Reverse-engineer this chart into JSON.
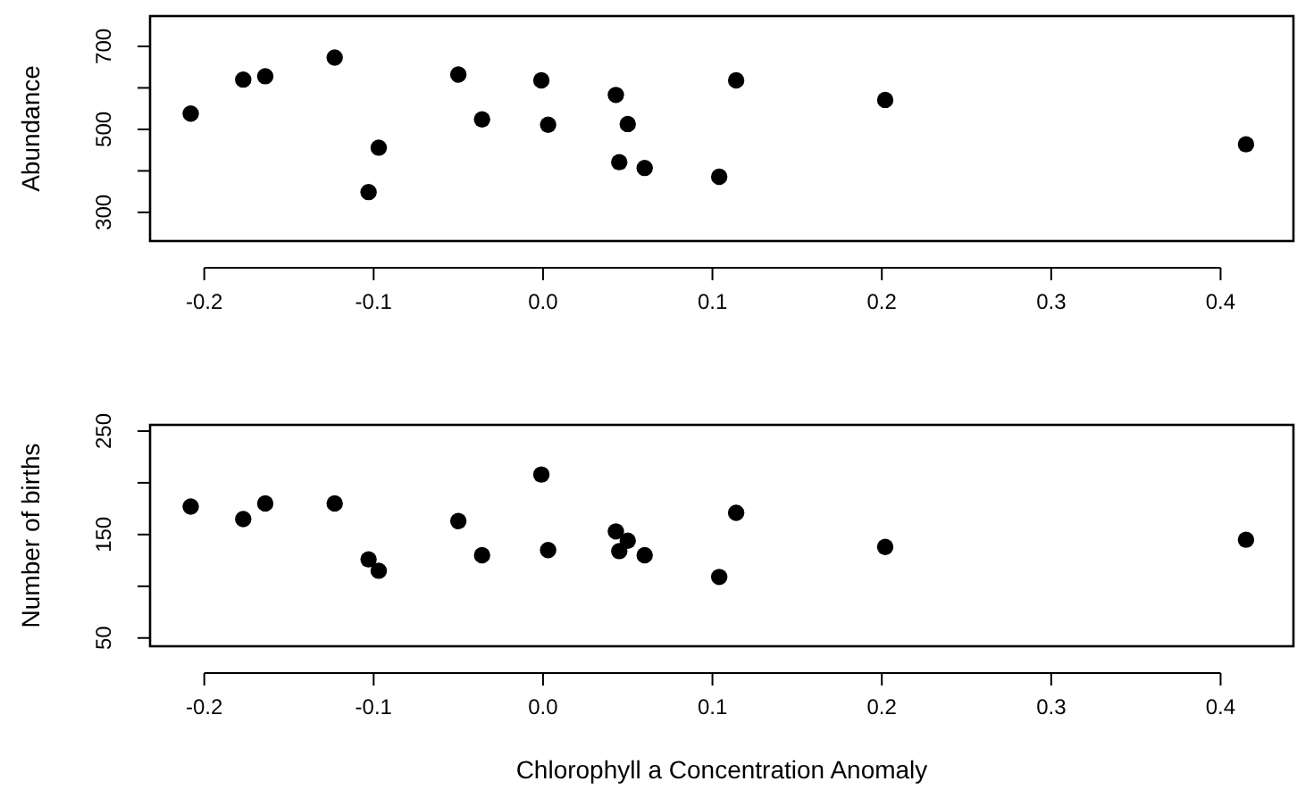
{
  "chart_data": [
    {
      "type": "scatter",
      "ylabel": "Abundance",
      "x": [
        -0.208,
        -0.177,
        -0.164,
        -0.123,
        -0.103,
        -0.097,
        -0.05,
        -0.036,
        -0.001,
        0.003,
        0.043,
        0.045,
        0.05,
        0.06,
        0.104,
        0.114,
        0.202,
        0.415
      ],
      "series": [
        {
          "color": "#000000",
          "values": [
            538,
            620,
            628,
            673,
            349,
            456,
            632,
            524,
            618,
            511,
            583,
            421,
            513,
            407,
            386,
            618,
            571,
            464
          ]
        }
      ],
      "xlim": [
        -0.232,
        0.443
      ],
      "ylim": [
        231,
        773
      ],
      "xticks": [
        -0.2,
        -0.1,
        {
          "value": 0,
          "label": "0.0"
        },
        0.1,
        0.2,
        0.3,
        0.4
      ],
      "yticks": [
        300,
        {
          "value": 400,
          "label": null
        },
        500,
        {
          "value": 600,
          "label": null
        },
        700
      ],
      "marker": "circle",
      "grid": false
    },
    {
      "type": "scatter",
      "ylabel": "Number of births",
      "xlabel": "Chlorophyll a Concentration Anomaly",
      "x": [
        -0.208,
        -0.177,
        -0.164,
        -0.123,
        -0.103,
        -0.097,
        -0.05,
        -0.036,
        -0.001,
        0.003,
        0.043,
        0.045,
        0.05,
        0.06,
        0.104,
        0.114,
        0.202,
        0.415
      ],
      "series": [
        {
          "color": "#000000",
          "values": [
            177,
            165,
            180,
            180,
            126,
            115,
            163,
            130,
            208,
            135,
            153,
            134,
            144,
            130,
            109,
            171,
            138,
            145
          ]
        }
      ],
      "xlim": [
        -0.232,
        0.443
      ],
      "ylim": [
        42,
        256
      ],
      "xticks": [
        -0.2,
        -0.1,
        {
          "value": 0,
          "label": "0.0"
        },
        0.1,
        0.2,
        0.3,
        0.4
      ],
      "yticks": [
        50,
        {
          "value": 100,
          "label": null
        },
        150,
        {
          "value": 200,
          "label": null
        },
        250
      ],
      "marker": "circle",
      "grid": false
    }
  ]
}
